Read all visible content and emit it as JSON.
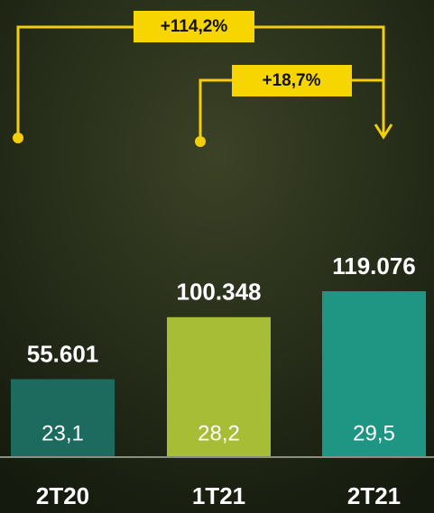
{
  "chart_data": {
    "type": "bar",
    "categories": [
      "2T20",
      "1T21",
      "2T21"
    ],
    "values": [
      55601,
      100348,
      119076
    ],
    "value_labels": [
      "55.601",
      "100.348",
      "119.076"
    ],
    "inner_values": [
      23.1,
      28.2,
      29.5
    ],
    "inner_value_labels": [
      "23,1",
      "28,2",
      "29,5"
    ],
    "colors": [
      "#1d6b5f",
      "#a7bd36",
      "#1f9683"
    ],
    "annotations": [
      "+114,2%",
      "+18,7%"
    ]
  }
}
